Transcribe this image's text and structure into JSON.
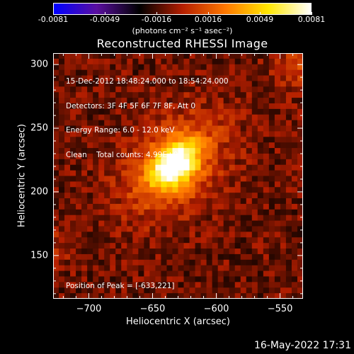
{
  "colors": {
    "background": "#000000",
    "axes": "#ffffff",
    "text": "#ffffff"
  },
  "colorbar": {
    "ticks": [
      "-0.0081",
      "-0.0049",
      "-0.0016",
      "0.0016",
      "0.0049",
      "0.0081"
    ],
    "unit": "(photons cm⁻² s⁻¹ asec⁻²)",
    "range": [
      -0.0081,
      0.0081
    ],
    "colormap": [
      "#0000ff",
      "#5a0fa0",
      "#000000",
      "#b41e00",
      "#ff7800",
      "#ffe600",
      "#ffffff"
    ]
  },
  "chart_data": {
    "type": "heatmap",
    "title": "Reconstructed RHESSI Image",
    "xlabel": "Heliocentric X (arcsec)",
    "ylabel": "Heliocentric Y (arcsec)",
    "xlim": [
      -728,
      -532
    ],
    "ylim": [
      116,
      309
    ],
    "x_ticks": [
      -700,
      -650,
      -600,
      -550
    ],
    "x_tick_labels": [
      "−700",
      "−650",
      "−600",
      "−550"
    ],
    "y_ticks": [
      150,
      200,
      250,
      300
    ],
    "y_tick_labels": [
      "150",
      "200",
      "250",
      "300"
    ],
    "peak_position": [
      -633,
      221
    ],
    "info_lines": [
      "15-Dec-2012 18:48:24.000 to 18:54:24.000",
      "Detectors: 3F 4F 5F 6F 7F 8F, Att 0",
      "Energy Range: 6.0 - 12.0 keV",
      "Clean    Total counts: 4.99E+04"
    ],
    "peak_label": "Position of Peak = [-633,221]"
  },
  "timestamp": "16-May-2022 17:31"
}
